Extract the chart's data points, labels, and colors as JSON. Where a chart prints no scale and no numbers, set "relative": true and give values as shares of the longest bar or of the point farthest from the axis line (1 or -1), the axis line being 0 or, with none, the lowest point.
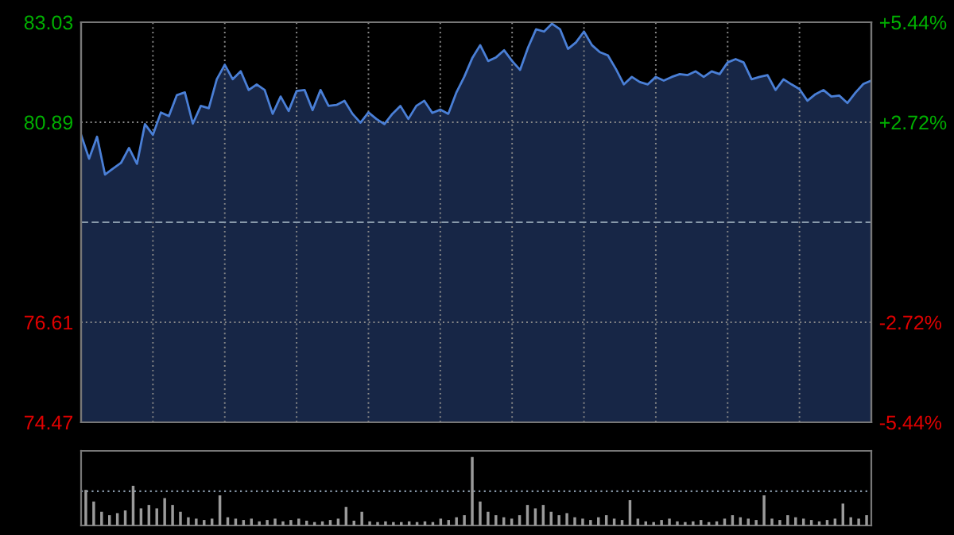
{
  "chart_data": [
    {
      "type": "area",
      "categories": [
        null,
        null,
        null,
        null,
        null,
        null,
        null,
        null,
        null,
        null,
        null,
        null,
        null,
        null,
        null,
        null,
        null,
        null,
        null,
        null,
        null,
        null,
        null,
        null,
        null,
        null,
        null,
        null,
        null,
        null,
        null,
        null,
        null,
        null,
        null,
        null,
        null,
        null,
        null,
        null,
        null,
        null,
        null,
        null,
        null,
        null,
        null,
        null,
        null,
        null,
        null,
        null,
        null,
        null,
        null,
        null,
        null,
        null,
        null,
        null,
        null,
        null,
        null,
        null,
        null,
        null,
        null,
        null,
        null,
        null,
        null,
        null,
        null,
        null,
        null,
        null,
        null,
        null,
        null,
        null,
        null,
        null,
        null,
        null,
        null,
        null,
        null,
        null,
        null,
        null,
        null,
        null,
        null,
        null,
        null,
        null,
        null,
        null,
        null,
        null
      ],
      "series": [
        {
          "color": "#4a7fd6",
          "values": [
            80.62,
            80.11,
            80.58,
            79.77,
            79.9,
            80.02,
            80.34,
            80.0,
            80.85,
            80.62,
            81.1,
            81.02,
            81.47,
            81.53,
            80.86,
            81.24,
            81.19,
            81.81,
            82.12,
            81.81,
            81.98,
            81.58,
            81.7,
            81.58,
            81.07,
            81.44,
            81.13,
            81.56,
            81.58,
            81.15,
            81.58,
            81.24,
            81.26,
            81.35,
            81.07,
            80.88,
            81.1,
            80.96,
            80.85,
            81.07,
            81.24,
            80.96,
            81.24,
            81.35,
            81.09,
            81.16,
            81.07,
            81.52,
            81.86,
            82.26,
            82.54,
            82.2,
            82.28,
            82.43,
            82.2,
            82.01,
            82.49,
            82.88,
            82.83,
            83.0,
            82.88,
            82.46,
            82.6,
            82.83,
            82.54,
            82.39,
            82.32,
            82.03,
            81.7,
            81.86,
            81.75,
            81.7,
            81.86,
            81.78,
            81.86,
            81.92,
            81.9,
            81.98,
            81.86,
            81.98,
            81.92,
            82.17,
            82.24,
            82.17,
            81.81,
            81.86,
            81.9,
            81.58,
            81.81,
            81.7,
            81.6,
            81.35,
            81.49,
            81.58,
            81.44,
            81.46,
            81.3,
            81.52,
            81.71,
            81.78
          ]
        }
      ],
      "ylim": [
        74.47,
        83.03
      ],
      "yticks": [
        74.47,
        76.61,
        80.89,
        83.03
      ],
      "y2lim": [
        -5.44,
        5.44
      ],
      "y2ticks": [
        {
          "value": -5.44,
          "label": "-5.44%"
        },
        {
          "value": -2.72,
          "label": "-2.72%"
        },
        {
          "value": 2.72,
          "label": "+2.72%"
        },
        {
          "value": 5.44,
          "label": "+5.44%"
        }
      ],
      "ref_lines": [
        {
          "axis": "y",
          "value": 78.75,
          "label": null,
          "line_style": "dashed"
        }
      ],
      "grid": true,
      "tick_labels": "y",
      "legend": false
    },
    {
      "type": "bar",
      "relative": true,
      "categories": [
        null,
        null,
        null,
        null,
        null,
        null,
        null,
        null,
        null,
        null,
        null,
        null,
        null,
        null,
        null,
        null,
        null,
        null,
        null,
        null,
        null,
        null,
        null,
        null,
        null,
        null,
        null,
        null,
        null,
        null,
        null,
        null,
        null,
        null,
        null,
        null,
        null,
        null,
        null,
        null,
        null,
        null,
        null,
        null,
        null,
        null,
        null,
        null,
        null,
        null,
        null,
        null,
        null,
        null,
        null,
        null,
        null,
        null,
        null,
        null,
        null,
        null,
        null,
        null,
        null,
        null,
        null,
        null,
        null,
        null,
        null,
        null,
        null,
        null,
        null,
        null,
        null,
        null,
        null,
        null,
        null,
        null,
        null,
        null,
        null,
        null,
        null,
        null,
        null,
        null,
        null,
        null,
        null,
        null,
        null,
        null,
        null,
        null,
        null,
        null
      ],
      "series": [
        {
          "color": "#9a9a9a",
          "values": [
            0.52,
            0.35,
            0.2,
            0.15,
            0.18,
            0.22,
            0.58,
            0.25,
            0.3,
            0.25,
            0.4,
            0.3,
            0.2,
            0.12,
            0.1,
            0.08,
            0.1,
            0.44,
            0.12,
            0.1,
            0.08,
            0.1,
            0.06,
            0.08,
            0.1,
            0.06,
            0.08,
            0.1,
            0.07,
            0.05,
            0.06,
            0.08,
            0.1,
            0.27,
            0.07,
            0.2,
            0.06,
            0.05,
            0.06,
            0.05,
            0.05,
            0.06,
            0.05,
            0.06,
            0.05,
            0.1,
            0.08,
            0.12,
            0.15,
            1.0,
            0.35,
            0.2,
            0.15,
            0.12,
            0.1,
            0.15,
            0.3,
            0.25,
            0.3,
            0.2,
            0.15,
            0.18,
            0.12,
            0.1,
            0.08,
            0.12,
            0.15,
            0.1,
            0.08,
            0.37,
            0.1,
            0.06,
            0.05,
            0.08,
            0.1,
            0.06,
            0.05,
            0.06,
            0.08,
            0.05,
            0.06,
            0.1,
            0.15,
            0.12,
            0.1,
            0.08,
            0.44,
            0.1,
            0.08,
            0.15,
            0.12,
            0.1,
            0.08,
            0.06,
            0.08,
            0.1,
            0.32,
            0.12,
            0.1,
            0.15
          ]
        }
      ],
      "ref_lines": [
        {
          "axis": "y",
          "value": 0.5,
          "label": null,
          "line_style": "dotted"
        }
      ],
      "grid": false,
      "tick_labels": false,
      "legend": false
    }
  ]
}
